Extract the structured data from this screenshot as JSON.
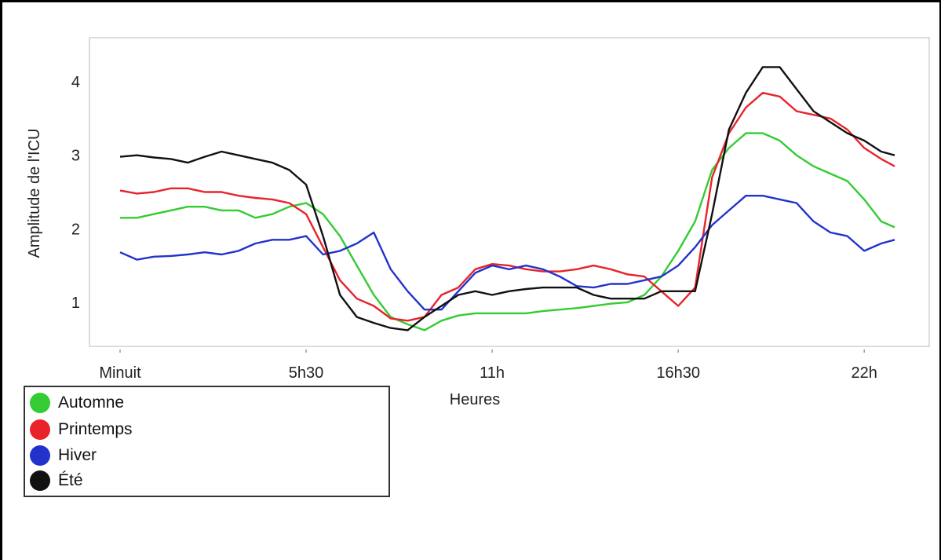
{
  "chart_data": {
    "type": "line",
    "title": "",
    "xlabel": "Heures",
    "ylabel": "Amplitude de l'ICU",
    "x_range": [
      0,
      22.9
    ],
    "y_range": [
      0.4,
      4.6
    ],
    "x_ticks": [
      {
        "value": 0,
        "label": "Minuit"
      },
      {
        "value": 5.5,
        "label": "5h30"
      },
      {
        "value": 11,
        "label": "11h"
      },
      {
        "value": 16.5,
        "label": "16h30"
      },
      {
        "value": 22,
        "label": "22h"
      }
    ],
    "y_ticks": [
      1,
      2,
      3,
      4
    ],
    "grid": false,
    "legend_position": "bottom-left",
    "x": [
      0,
      0.5,
      1,
      1.5,
      2,
      2.5,
      3,
      3.5,
      4,
      4.5,
      5,
      5.5,
      6,
      6.5,
      7,
      7.5,
      8,
      8.5,
      9,
      9.5,
      10,
      10.5,
      11,
      11.5,
      12,
      12.5,
      13,
      13.5,
      14,
      14.5,
      15,
      15.5,
      16,
      16.5,
      17,
      17.5,
      18,
      18.5,
      19,
      19.5,
      20,
      20.5,
      21,
      21.5,
      22,
      22.5,
      22.9
    ],
    "series": [
      {
        "name": "Automne",
        "color": "#33cc33",
        "values": [
          2.15,
          2.15,
          2.2,
          2.25,
          2.3,
          2.3,
          2.25,
          2.25,
          2.15,
          2.2,
          2.3,
          2.35,
          2.2,
          1.9,
          1.5,
          1.1,
          0.8,
          0.7,
          0.62,
          0.75,
          0.82,
          0.85,
          0.85,
          0.85,
          0.85,
          0.88,
          0.9,
          0.92,
          0.95,
          0.98,
          1.0,
          1.1,
          1.35,
          1.7,
          2.1,
          2.8,
          3.1,
          3.3,
          3.3,
          3.2,
          3.0,
          2.85,
          2.75,
          2.65,
          2.4,
          2.1,
          2.02
        ]
      },
      {
        "name": "Printemps",
        "color": "#e8232a",
        "values": [
          2.52,
          2.48,
          2.5,
          2.55,
          2.55,
          2.5,
          2.5,
          2.45,
          2.42,
          2.4,
          2.35,
          2.2,
          1.75,
          1.3,
          1.05,
          0.95,
          0.78,
          0.75,
          0.8,
          1.1,
          1.2,
          1.45,
          1.52,
          1.5,
          1.45,
          1.42,
          1.42,
          1.45,
          1.5,
          1.45,
          1.38,
          1.35,
          1.15,
          0.95,
          1.2,
          2.7,
          3.3,
          3.65,
          3.85,
          3.8,
          3.6,
          3.55,
          3.5,
          3.35,
          3.1,
          2.95,
          2.85
        ]
      },
      {
        "name": "Hiver",
        "color": "#2233cc",
        "values": [
          1.68,
          1.58,
          1.62,
          1.63,
          1.65,
          1.68,
          1.65,
          1.7,
          1.8,
          1.85,
          1.85,
          1.9,
          1.65,
          1.7,
          1.8,
          1.95,
          1.45,
          1.15,
          0.9,
          0.9,
          1.15,
          1.4,
          1.5,
          1.45,
          1.5,
          1.45,
          1.35,
          1.22,
          1.2,
          1.25,
          1.25,
          1.3,
          1.35,
          1.5,
          1.75,
          2.05,
          2.25,
          2.45,
          2.45,
          2.4,
          2.35,
          2.1,
          1.95,
          1.9,
          1.7,
          1.8,
          1.85
        ]
      },
      {
        "name": "Été",
        "color": "#111111",
        "values": [
          2.98,
          3.0,
          2.97,
          2.95,
          2.9,
          2.98,
          3.05,
          3.0,
          2.95,
          2.9,
          2.8,
          2.6,
          1.9,
          1.1,
          0.8,
          0.72,
          0.65,
          0.62,
          0.8,
          0.95,
          1.1,
          1.15,
          1.1,
          1.15,
          1.18,
          1.2,
          1.2,
          1.2,
          1.1,
          1.05,
          1.05,
          1.05,
          1.15,
          1.15,
          1.15,
          2.2,
          3.35,
          3.85,
          4.2,
          4.2,
          3.9,
          3.6,
          3.45,
          3.3,
          3.2,
          3.05,
          3.0
        ]
      }
    ]
  }
}
